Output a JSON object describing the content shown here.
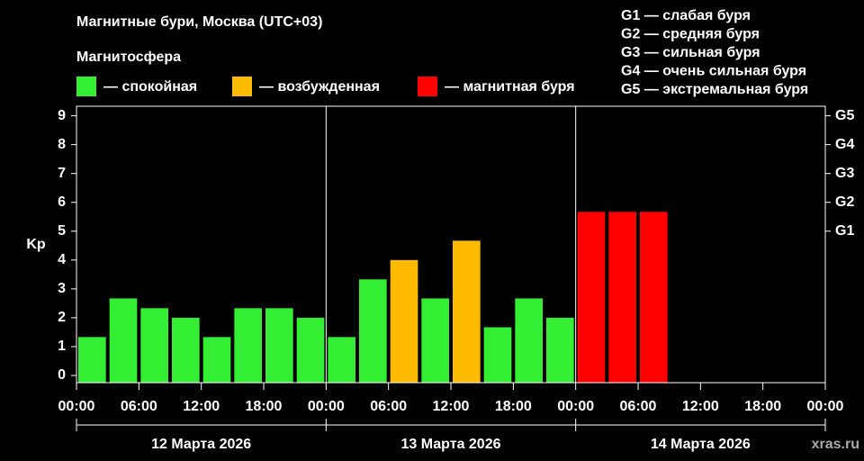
{
  "chart_data": {
    "type": "bar",
    "title": "Магнитные бури, Москва (UTC+03)",
    "legend_title": "Магнитосфера",
    "y_label": "Kp",
    "watermark": "xras.ru",
    "storm_scale": [
      "G1 — слабая буря",
      "G2 — средняя буря",
      "G3 — сильная буря",
      "G4 — очень сильная буря",
      "G5 — экстремальная буря"
    ],
    "days": [
      "12 Марта 2026",
      "13 Марта 2026",
      "14 Марта 2026"
    ],
    "x": [
      0,
      3,
      6,
      9,
      12,
      15,
      18,
      21,
      24,
      27,
      30,
      33,
      36,
      39,
      42,
      45,
      48,
      51,
      54,
      57,
      60,
      63,
      66,
      69
    ],
    "series": [
      {
        "name": "— спокойная",
        "color": "#33ee33",
        "values": [
          1.33,
          2.67,
          2.33,
          2,
          1.33,
          2.33,
          2.33,
          2,
          1.33,
          3.33,
          null,
          2.67,
          null,
          1.67,
          2.67,
          2,
          null,
          null,
          null,
          null,
          null,
          null,
          null,
          null
        ]
      },
      {
        "name": "— возбужденная",
        "color": "#ffbb00",
        "values": [
          null,
          null,
          null,
          null,
          null,
          null,
          null,
          null,
          null,
          null,
          4,
          null,
          4.67,
          null,
          null,
          null,
          null,
          null,
          null,
          null,
          null,
          null,
          null,
          null
        ]
      },
      {
        "name": "— магнитная буря",
        "color": "#ff0000",
        "values": [
          null,
          null,
          null,
          null,
          null,
          null,
          null,
          null,
          null,
          null,
          null,
          null,
          null,
          null,
          null,
          null,
          5.67,
          5.67,
          5.67,
          null,
          null,
          null,
          null,
          null
        ]
      }
    ],
    "xlim": [
      0,
      72
    ],
    "xticks": [
      {
        "value": 0,
        "label": "00:00"
      },
      {
        "value": 6,
        "label": "06:00"
      },
      {
        "value": 12,
        "label": "12:00"
      },
      {
        "value": 18,
        "label": "18:00"
      },
      {
        "value": 24,
        "label": "00:00"
      },
      {
        "value": 30,
        "label": "06:00"
      },
      {
        "value": 36,
        "label": "12:00"
      },
      {
        "value": 42,
        "label": "18:00"
      },
      {
        "value": 48,
        "label": "00:00"
      },
      {
        "value": 54,
        "label": "06:00"
      },
      {
        "value": 60,
        "label": "12:00"
      },
      {
        "value": 66,
        "label": "18:00"
      },
      {
        "value": 72,
        "label": "00:00"
      }
    ],
    "ylim": [
      -0.25,
      9.33
    ],
    "yticks": [
      0,
      1,
      2,
      3,
      4,
      5,
      6,
      7,
      8,
      9
    ],
    "y2lim": [
      -0.25,
      9.33
    ],
    "y2ticks": [
      {
        "value": 5,
        "label": "G1"
      },
      {
        "value": 6,
        "label": "G2"
      },
      {
        "value": 7,
        "label": "G3"
      },
      {
        "value": 8,
        "label": "G4"
      },
      {
        "value": 9,
        "label": "G5"
      }
    ]
  }
}
